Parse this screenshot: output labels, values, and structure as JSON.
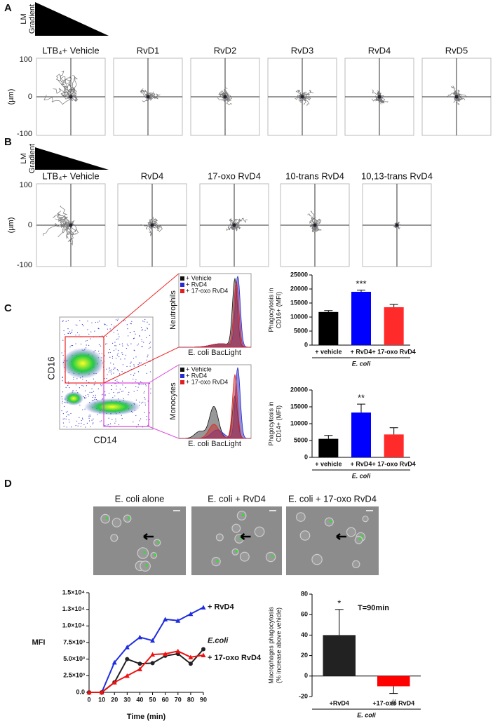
{
  "panels": {
    "A": {
      "label": "A",
      "gradient_label": [
        "LM",
        "Gradient"
      ],
      "y_axis_label": "(µm)",
      "y_ticks": [
        100,
        0,
        -100
      ],
      "plots": [
        "LTB₄+ Vehicle",
        "RvD1",
        "RvD2",
        "RvD3",
        "RvD4",
        "RvD5"
      ]
    },
    "B": {
      "label": "B",
      "gradient_label": [
        "LM",
        "Gradient"
      ],
      "y_axis_label": "(µm)",
      "y_ticks": [
        100,
        0,
        -100
      ],
      "plots": [
        "LTB₄+ Vehicle",
        "RvD4",
        "17-oxo RvD4",
        "10-trans RvD4",
        "10,13-trans RvD4"
      ]
    },
    "C": {
      "label": "C",
      "scatter_y_label": "CD16",
      "scatter_x_label": "CD14",
      "histogram_labels": [
        "Neutrophils",
        "Monocytes"
      ],
      "histogram_x_label": "E. coli BacLight",
      "histogram_legend": [
        {
          "label": "+ Vehicle",
          "color": "#111111"
        },
        {
          "label": "+ RvD4",
          "color": "#2a2ad0"
        },
        {
          "label": "+ 17-oxo RvD4",
          "color": "#e02020"
        }
      ]
    },
    "D": {
      "label": "D",
      "image_titles": [
        "E. coli alone",
        "E. coli + RvD4",
        "E. coli + 17-oxo RvD4"
      ]
    }
  },
  "chart_data": [
    {
      "type": "bar",
      "ylabel": [
        "Phagocytosis in",
        "CD16+ (MFI)"
      ],
      "categories": [
        "+ vehicle",
        "+ RvD4",
        "+ 17-oxo RvD4"
      ],
      "group_label": "E. coli",
      "values": [
        11800,
        19000,
        13500
      ],
      "errors": [
        500,
        600,
        1000
      ],
      "significance": [
        null,
        "***",
        null
      ],
      "colors": [
        "#000000",
        "#0000ff",
        "#ff2a2a"
      ],
      "ylim": [
        0,
        25000
      ],
      "yticks": [
        0,
        5000,
        10000,
        15000,
        20000,
        25000
      ]
    },
    {
      "type": "bar",
      "ylabel": [
        "Phagocytosis in",
        "CD14+ (MFI)"
      ],
      "categories": [
        "+ vehicle",
        "+ RvD4",
        "+ 17-oxo RvD4"
      ],
      "group_label": "E. coli",
      "values": [
        5500,
        13300,
        6800
      ],
      "errors": [
        1000,
        2500,
        2000
      ],
      "significance": [
        null,
        "**",
        null
      ],
      "colors": [
        "#000000",
        "#0000ff",
        "#ff2a2a"
      ],
      "ylim": [
        0,
        20000
      ],
      "yticks": [
        0,
        5000,
        10000,
        15000,
        20000
      ]
    },
    {
      "type": "line",
      "ylabel": "MFI",
      "xlabel": "Time (min)",
      "x": [
        0,
        10,
        20,
        30,
        40,
        50,
        60,
        70,
        80,
        90
      ],
      "series": [
        {
          "name": "+ RvD4",
          "color": "#1f2de0",
          "marker": "triangle",
          "values": [
            0,
            0,
            4500,
            6800,
            8300,
            7800,
            11000,
            10800,
            11800,
            12800
          ]
        },
        {
          "name": "E.coli",
          "color": "#222222",
          "marker": "circle",
          "values": [
            0,
            0,
            1500,
            5000,
            4300,
            4400,
            5500,
            5800,
            4300,
            6500
          ]
        },
        {
          "name": "+ 17-oxo RvD4",
          "color": "#ee1111",
          "marker": "triangle",
          "values": [
            0,
            0,
            1500,
            2500,
            3500,
            5700,
            5800,
            6200,
            5300,
            5600
          ]
        }
      ],
      "xlim": [
        0,
        90
      ],
      "xticks": [
        0,
        10,
        20,
        30,
        40,
        50,
        60,
        70,
        80,
        90
      ],
      "ylim": [
        0,
        15000
      ],
      "yticks": [
        {
          "value": 0,
          "label": "0.0"
        },
        {
          "value": 2500,
          "label": "2.5×10³"
        },
        {
          "value": 5000,
          "label": "5.0×10³"
        },
        {
          "value": 7500,
          "label": "7.5×10³"
        },
        {
          "value": 10000,
          "label": "1.0×10⁴"
        },
        {
          "value": 12500,
          "label": "1.3×10⁴"
        },
        {
          "value": 15000,
          "label": "1.5×10⁴"
        }
      ]
    },
    {
      "type": "bar",
      "title": "T=90min",
      "ylabel": [
        "Macrophages phagocytosis",
        "(% increase above vehicle)"
      ],
      "categories": [
        "+RvD4",
        "+17-oxo RvD4"
      ],
      "group_label": "E. coli",
      "values": [
        40,
        -10
      ],
      "errors": [
        25,
        7
      ],
      "significance": [
        "*",
        "#"
      ],
      "colors": [
        "#222222",
        "#ff0000"
      ],
      "ylim": [
        -20,
        80
      ],
      "yticks": [
        -20,
        0,
        20,
        40,
        60,
        80
      ]
    }
  ]
}
